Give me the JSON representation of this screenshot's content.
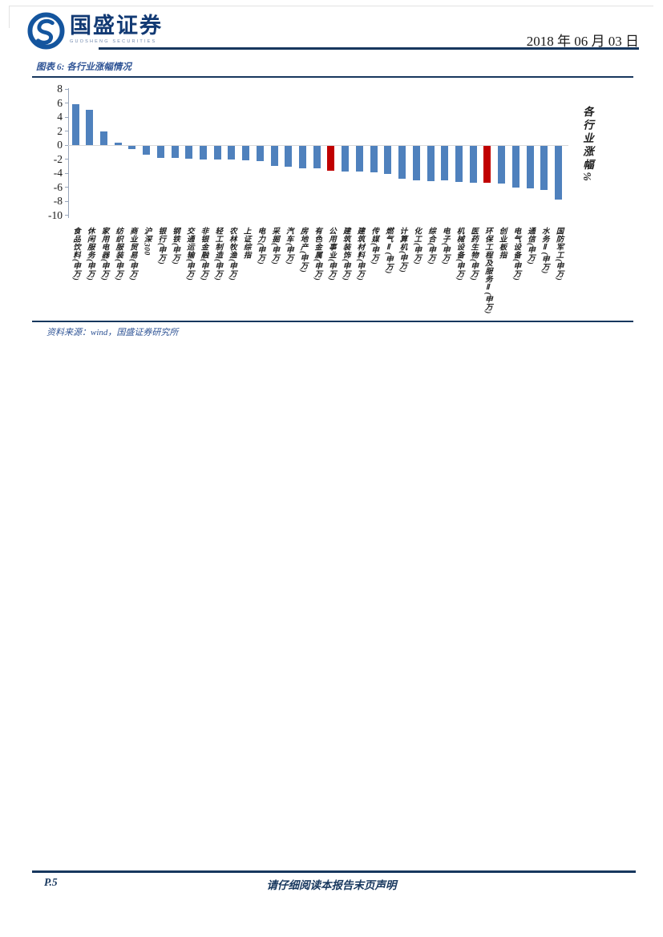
{
  "header": {
    "brand_name": "国盛证券",
    "brand_tagline": "GUOSHENG SECURITIES",
    "date": "2018 年 06 月 03 日"
  },
  "figure": {
    "caption": "图表 6:  各行业涨幅情况",
    "source": "资料来源：wind，国盛证券研究所"
  },
  "chart_data": {
    "type": "bar",
    "title": "各行业涨幅情况",
    "right_axis_label": "各行业涨幅%",
    "ylim": [
      -10,
      8
    ],
    "ytick_step": 2,
    "grid": false,
    "legend": "none",
    "bar_color": "#4f81bd",
    "highlight_color": "#c00000",
    "highlight_indices": [
      18,
      29
    ],
    "categories": [
      "食品饮料(申万)",
      "休闲服务(申万)",
      "家用电器(申万)",
      "纺织服装(申万)",
      "商业贸易(申万)",
      "沪深300",
      "银行(申万)",
      "钢铁(申万)",
      "交通运输(申万)",
      "非银金融(申万)",
      "轻工制造(申万)",
      "农林牧渔(申万)",
      "上证综指",
      "电力(申万)",
      "采掘(申万)",
      "汽车(申万)",
      "房地产(申万)",
      "有色金属(申万)",
      "公用事业(申万)",
      "建筑装饰(申万)",
      "建筑材料(申万)",
      "传媒(申万)",
      "燃气Ⅱ(申万)",
      "计算机(申万)",
      "化工(申万)",
      "综合(申万)",
      "电子(申万)",
      "机械设备(申万)",
      "医药生物(申万)",
      "环保工程及服务Ⅱ(申万)",
      "创业板指",
      "电气设备(申万)",
      "通信(申万)",
      "水务Ⅱ(申万)",
      "国防军工(申万)"
    ],
    "values": [
      5.8,
      5.0,
      2.0,
      0.4,
      -0.4,
      -1.2,
      -1.7,
      -1.7,
      -1.8,
      -1.9,
      -1.9,
      -1.9,
      -2.0,
      -2.2,
      -2.9,
      -3.0,
      -3.2,
      -3.2,
      -3.5,
      -3.7,
      -3.7,
      -3.8,
      -4.0,
      -4.7,
      -4.9,
      -5.0,
      -4.9,
      -5.1,
      -5.2,
      -5.2,
      -5.4,
      -5.9,
      -6.1,
      -6.3,
      -7.6
    ]
  },
  "footer": {
    "page_label": "P.5",
    "disclaimer": "请仔细阅读本报告末页声明"
  },
  "colors": {
    "accent_navy": "#17375e",
    "caption_blue": "#2e5395",
    "bar_blue": "#4f81bd",
    "bar_red": "#c00000"
  }
}
